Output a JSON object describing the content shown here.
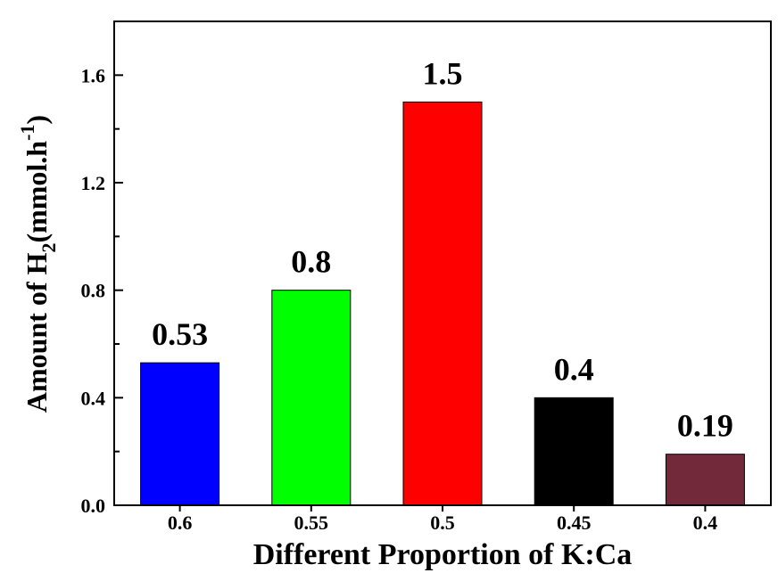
{
  "chart_data": {
    "type": "bar",
    "categories": [
      "0.6",
      "0.55",
      "0.5",
      "0.45",
      "0.4"
    ],
    "values": [
      0.53,
      0.8,
      1.5,
      0.4,
      0.19
    ],
    "data_labels": [
      "0.53",
      "0.8",
      "1.5",
      "0.4",
      "0.19"
    ],
    "bar_colors": [
      "#0000ff",
      "#00ff00",
      "#ff0000",
      "#000000",
      "#722a3b"
    ],
    "xlabel": "Different Proportion of K:Ca",
    "ylabel": {
      "prefix": "Amount of H",
      "subscript": "2",
      "middle": "(mmol.h",
      "superscript": "-1",
      "suffix": ")"
    },
    "yticks": [
      "0.0",
      "0.4",
      "0.8",
      "1.2",
      "1.6"
    ],
    "ylim": [
      0,
      1.8
    ],
    "grid": false,
    "legend": "none"
  }
}
